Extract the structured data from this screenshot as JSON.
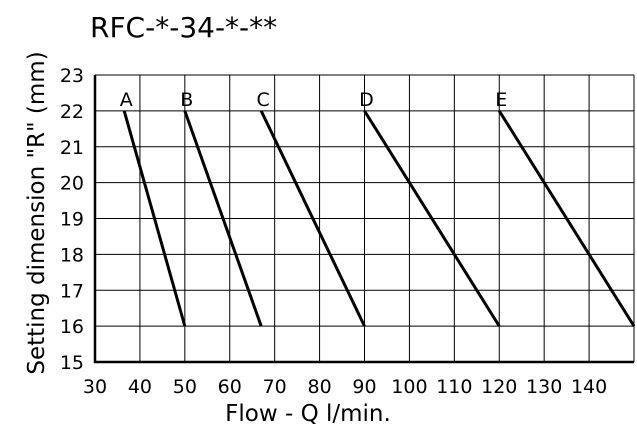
{
  "chart_data": {
    "type": "line",
    "title": "RFC-*-34-*-**",
    "xlabel": "Flow - Q l/min.",
    "ylabel": "Setting dimension \"R\" (mm)",
    "xlim": [
      30,
      150
    ],
    "ylim": [
      15,
      23
    ],
    "x_ticks": [
      30,
      40,
      50,
      60,
      70,
      80,
      90,
      100,
      110,
      120,
      130,
      140
    ],
    "y_ticks": [
      15,
      16,
      17,
      18,
      19,
      20,
      21,
      22,
      23
    ],
    "grid": true,
    "series": [
      {
        "name": "A",
        "points": [
          [
            36.5,
            22
          ],
          [
            50,
            16
          ]
        ]
      },
      {
        "name": "B",
        "points": [
          [
            50,
            22
          ],
          [
            67,
            16
          ]
        ]
      },
      {
        "name": "C",
        "points": [
          [
            67,
            22
          ],
          [
            90,
            16
          ]
        ]
      },
      {
        "name": "D",
        "points": [
          [
            90,
            22
          ],
          [
            120,
            16
          ]
        ]
      },
      {
        "name": "E",
        "points": [
          [
            120,
            22
          ],
          [
            150,
            16
          ]
        ]
      }
    ],
    "line_color": "#000000"
  }
}
